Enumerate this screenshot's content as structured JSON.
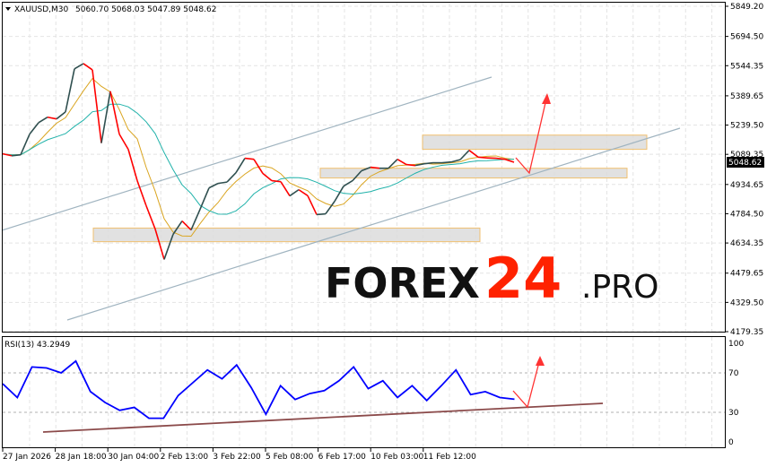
{
  "header": {
    "symbol": "XAUUSD,M30",
    "ohlc": "5060.70 5068.03 5047.89 5048.62"
  },
  "watermark": {
    "main": "FOREX",
    "num": "24",
    "suffix": ".PRO"
  },
  "colors": {
    "bull": "#2f4f4f",
    "bear": "#ff0000",
    "ma_fast": "#daa520",
    "ma_slow": "#20b2aa",
    "rsi": "#0000ff",
    "zone_border": "#f0c070",
    "zone_fill": "#dcdcdc",
    "channel": "#a0b4c0",
    "arrow": "#ff3333",
    "rsi_trend": "#8b4a4a"
  },
  "chart_data": [
    {
      "type": "line",
      "title": "XAUUSD,M30",
      "ylim": [
        4179.35,
        5849.2
      ],
      "y_ticks": [
        "5849.20",
        "5694.50",
        "5544.35",
        "5389.65",
        "5239.50",
        "5089.35",
        "4934.65",
        "4784.50",
        "4634.35",
        "4479.65",
        "4329.50",
        "4179.35"
      ],
      "x_ticks": [
        "27 Jan 2026",
        "28 Jan 18:00",
        "30 Jan 04:00",
        "2 Feb 13:00",
        "3 Feb 22:00",
        "5 Feb 08:00",
        "6 Feb 17:00",
        "10 Feb 03:00",
        "11 Feb 12:00"
      ],
      "current_price": "5048.62",
      "grid": true,
      "series": [
        {
          "values": [
            5092,
            5082,
            5087,
            5193,
            5252,
            5280,
            5271,
            5307,
            5528,
            5555,
            5523,
            5147,
            5413,
            5193,
            5115,
            4954,
            4825,
            4706,
            4550,
            4679,
            4747,
            4701,
            4807,
            4917,
            4940,
            4947,
            4995,
            5069,
            5064,
            4991,
            4954,
            4949,
            4876,
            4908,
            4877,
            4780,
            4784,
            4848,
            4926,
            4954,
            5005,
            5023,
            5018,
            5018,
            5064,
            5037,
            5032,
            5041,
            5046,
            5046,
            5050,
            5062,
            5110,
            5075,
            5071,
            5069,
            5064,
            5048.62
          ]
        }
      ],
      "zones": [
        {
          "from": 5115,
          "to": 5188
        },
        {
          "from": 4968,
          "to": 5018
        },
        {
          "from": 4641,
          "to": 4711
        }
      ]
    },
    {
      "type": "line",
      "title": "RSI(13) 43.2949",
      "ylim": [
        0,
        100
      ],
      "y_ticks": [
        "100",
        "70",
        "30",
        "0"
      ],
      "levels": [
        70,
        30
      ],
      "series": [
        {
          "values": [
            59,
            45,
            76,
            75,
            70,
            82,
            51,
            40,
            32,
            35,
            24,
            24,
            47,
            60,
            73,
            64,
            78,
            55,
            28,
            57,
            43,
            49,
            52,
            62,
            76,
            54,
            62,
            45,
            57,
            42,
            57,
            73,
            48,
            51,
            45,
            43.29
          ]
        }
      ]
    }
  ]
}
